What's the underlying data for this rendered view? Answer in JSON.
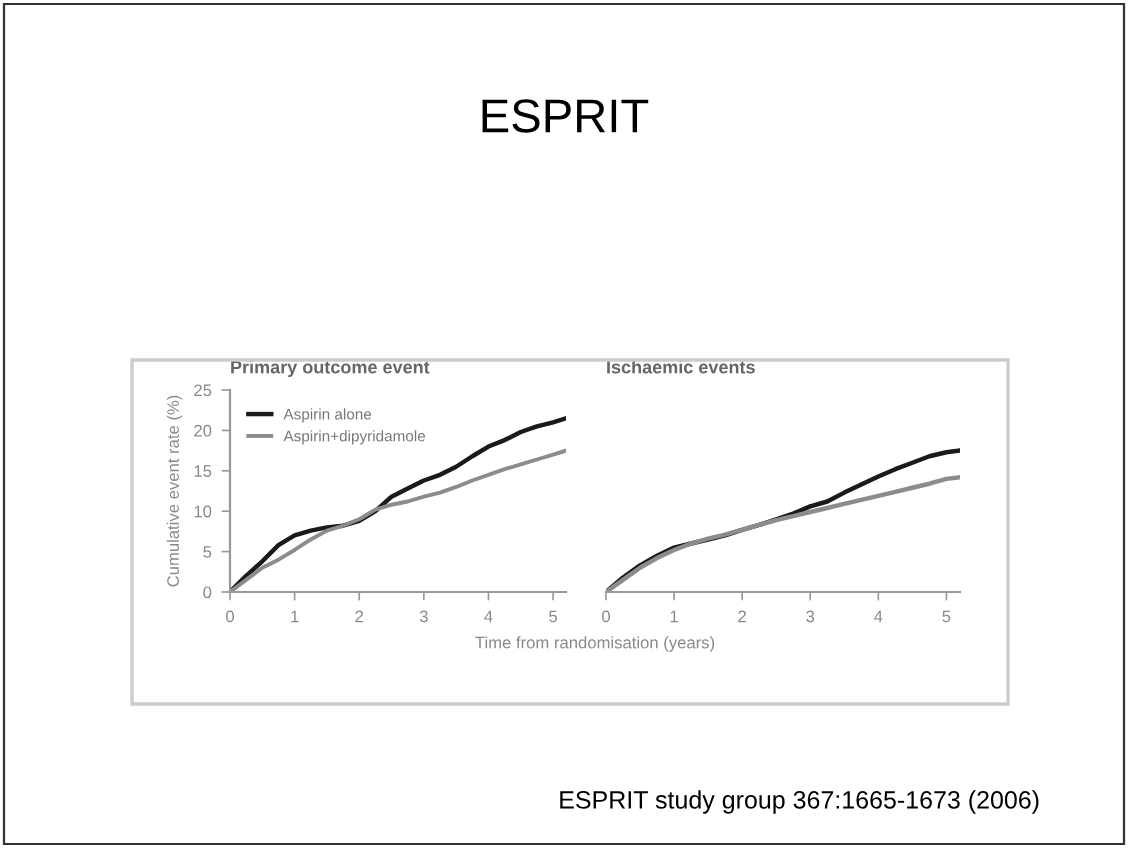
{
  "chart_data": [
    {
      "type": "line",
      "title": "Primary outcome event",
      "ylabel": "Cumulative event rate (%)",
      "xlabel": "Time from randomisation (years)",
      "annotations": [
        "ESPRIT"
      ],
      "x": [
        0,
        0.25,
        0.5,
        0.75,
        1,
        1.25,
        1.5,
        1.75,
        2,
        2.25,
        2.5,
        2.75,
        3,
        3.25,
        3.5,
        3.75,
        4,
        4.25,
        4.5,
        4.75,
        5,
        5.2
      ],
      "series": [
        {
          "name": "Aspirin alone",
          "color": "#1a1a1a",
          "values": [
            0,
            2,
            3.8,
            5.8,
            7,
            7.6,
            8,
            8.2,
            8.8,
            10,
            11.8,
            12.8,
            13.8,
            14.5,
            15.5,
            16.8,
            18,
            18.8,
            19.8,
            20.5,
            21,
            21.5
          ]
        },
        {
          "name": "Aspirin+dipyridamole",
          "color": "#8c8c8c",
          "values": [
            0,
            1.5,
            3,
            4,
            5.2,
            6.5,
            7.6,
            8.2,
            9,
            10.2,
            10.8,
            11.2,
            11.8,
            12.3,
            13,
            13.8,
            14.5,
            15.2,
            15.8,
            16.4,
            17,
            17.5
          ]
        }
      ],
      "xlim": [
        0,
        5.2
      ],
      "xticks": [
        0,
        1,
        2,
        3,
        4,
        5
      ],
      "ylim": [
        0,
        25
      ],
      "yticks": [
        0,
        5,
        10,
        15,
        20,
        25
      ],
      "legend": "top left",
      "grid": false
    },
    {
      "type": "line",
      "title": "Ischaemic events",
      "annotations": [
        "ESPRIT study group 367:1665-1673 (2006)"
      ],
      "x": [
        0,
        0.25,
        0.5,
        0.75,
        1,
        1.25,
        1.5,
        1.75,
        2,
        2.25,
        2.5,
        2.75,
        3,
        3.25,
        3.5,
        3.75,
        4,
        4.25,
        4.5,
        4.75,
        5,
        5.2
      ],
      "series": [
        {
          "color": "#1a1a1a",
          "values": [
            0,
            1.8,
            3.3,
            4.5,
            5.5,
            6,
            6.5,
            7,
            7.7,
            8.3,
            9,
            9.7,
            10.6,
            11.2,
            12.3,
            13.3,
            14.3,
            15.2,
            16,
            16.8,
            17.3,
            17.5
          ]
        },
        {
          "color": "#8c8c8c",
          "values": [
            0,
            1.5,
            3,
            4.2,
            5.2,
            6,
            6.6,
            7.1,
            7.7,
            8.3,
            8.9,
            9.4,
            9.9,
            10.4,
            10.9,
            11.4,
            11.9,
            12.4,
            12.9,
            13.4,
            14,
            14.2
          ]
        }
      ],
      "xlim": [
        0,
        5.2
      ],
      "xticks": [
        0,
        1,
        2,
        3,
        4,
        5
      ],
      "ylim": [
        0,
        25
      ],
      "tick_labels": "x",
      "grid": false
    }
  ]
}
